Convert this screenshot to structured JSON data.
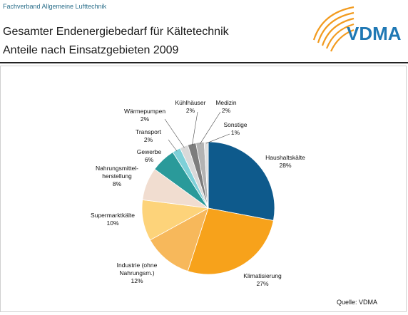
{
  "header": {
    "org": "Fachverband Allgemeine Lufttechnik",
    "title": "Gesamter Endenergiebedarf für Kältetechnik",
    "subtitle": "Anteile nach Einsatzgebieten 2009",
    "logo_text": "VDMA",
    "logo_color": "#1f78b4",
    "logo_arc_color": "#f29b1f"
  },
  "chart_data": {
    "type": "pie",
    "title": "Gesamter Endenergiebedarf für Kältetechnik",
    "subtitle": "Anteile nach Einsatzgebieten 2009",
    "slices": [
      {
        "label": "Haushaltskälte",
        "value": 28,
        "value_label": "28%",
        "color": "#0e5a8c"
      },
      {
        "label": "Klimatisierung",
        "value": 27,
        "value_label": "27%",
        "color": "#f7a21b"
      },
      {
        "label": "Industrie (ohne Nahrungsm.)",
        "value": 12,
        "value_label": "12%",
        "color": "#f7b85b"
      },
      {
        "label": "Supermarktkälte",
        "value": 10,
        "value_label": "10%",
        "color": "#fdd37a"
      },
      {
        "label": "Nahrungsmittel-herstellung",
        "value": 8,
        "value_label": "8%",
        "color": "#f1ddd0"
      },
      {
        "label": "Gewerbe",
        "value": 6,
        "value_label": "6%",
        "color": "#2a9a9a"
      },
      {
        "label": "Transport",
        "value": 2,
        "value_label": "2%",
        "color": "#7fd0d8"
      },
      {
        "label": "Wärmepumpen",
        "value": 2,
        "value_label": "2%",
        "color": "#d9d9d9"
      },
      {
        "label": "Kühlhäuser",
        "value": 2,
        "value_label": "2%",
        "color": "#7d7d7d"
      },
      {
        "label": "Medizin",
        "value": 2,
        "value_label": "2%",
        "color": "#b3b3b3"
      },
      {
        "label": "Sonstige",
        "value": 1,
        "value_label": "1%",
        "color": "#e0e0e0"
      }
    ],
    "source": "Quelle: VDMA"
  }
}
